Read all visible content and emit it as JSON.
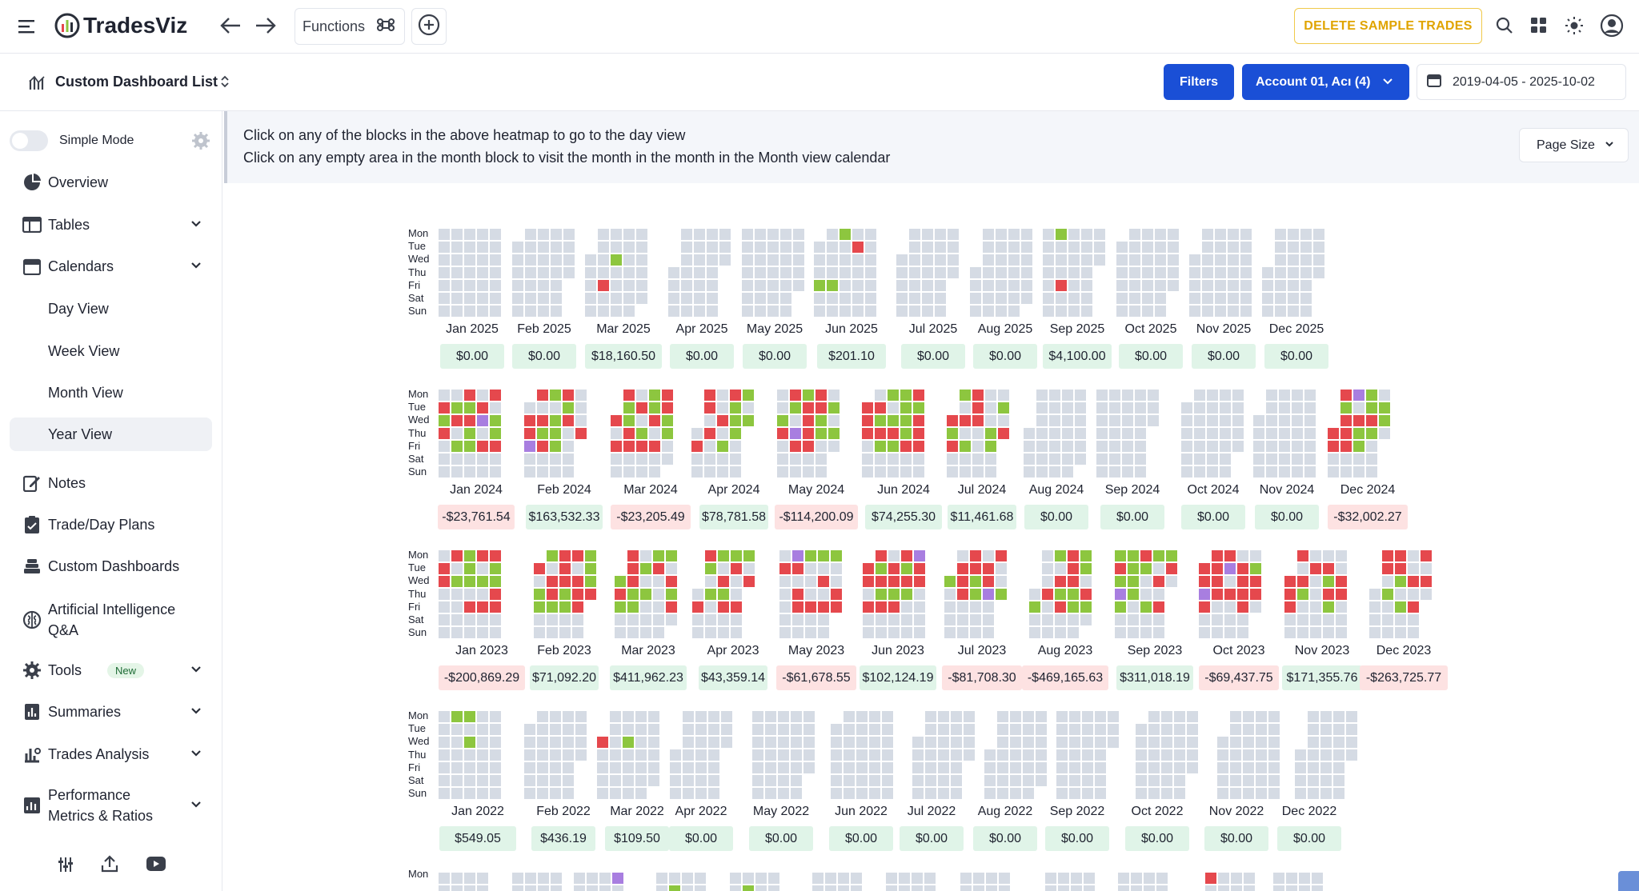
{
  "app": {
    "brand": "TradesViz"
  },
  "topbar": {
    "functions_label": "Functions",
    "delete_button": "DELETE SAMPLE TRADES"
  },
  "subbar": {
    "dashboard_title": "Custom Dashboard List",
    "filters_button": "Filters",
    "account_select": "Account 01, Acı (4)",
    "date_range": "2019-04-05 - 2025-10-02"
  },
  "sidebar": {
    "simple_mode": "Simple Mode",
    "items": [
      {
        "label": "Overview",
        "icon": "pie-chart-icon"
      },
      {
        "label": "Tables",
        "icon": "table-icon"
      },
      {
        "label": "Calendars",
        "icon": "calendar-icon"
      },
      {
        "label": "Notes",
        "icon": "notes-icon"
      },
      {
        "label": "Trade/Day Plans",
        "icon": "clipboard-icon"
      },
      {
        "label": "Custom Dashboards",
        "icon": "stack-icon"
      },
      {
        "label": "Artificial Intelligence Q&A",
        "icon": "brain-icon"
      },
      {
        "label": "Tools",
        "icon": "gear-icon",
        "badge": "New"
      },
      {
        "label": "Summaries",
        "icon": "bar-chart-icon"
      },
      {
        "label": "Trades Analysis",
        "icon": "analysis-icon"
      },
      {
        "label": "Performance Metrics & Ratios",
        "icon": "metrics-icon"
      }
    ],
    "calendar_sub": [
      "Day View",
      "Week View",
      "Month View",
      "Year View"
    ]
  },
  "info": {
    "line1": "Click on any of the blocks in the above heatmap to go to the day view",
    "line2": "Click on any empty area in the month block to visit the month in the month in the Month view calendar",
    "page_size": "Page Size"
  },
  "day_labels": [
    "Mon",
    "Tue",
    "Wed",
    "Thu",
    "Fri",
    "Sat",
    "Sun"
  ],
  "colors": {
    "empty": "#d5dbe4",
    "win": "#8dc63f",
    "loss": "#e5484d",
    "mixed": "#a87ee0",
    "primary": "#1a4fd6",
    "warning": "#f0b429"
  },
  "years": [
    {
      "year": 2025,
      "months": [
        {
          "label": "Jan 2025",
          "pnl": "$0.00"
        },
        {
          "label": "Feb 2025",
          "pnl": "$0.00"
        },
        {
          "label": "Mar 2025",
          "pnl": "$18,160.50"
        },
        {
          "label": "Apr 2025",
          "pnl": "$0.00"
        },
        {
          "label": "May 2025",
          "pnl": "$0.00"
        },
        {
          "label": "Jun 2025",
          "pnl": "$201.10"
        },
        {
          "label": "Jul 2025",
          "pnl": "$0.00"
        },
        {
          "label": "Aug 2025",
          "pnl": "$0.00"
        },
        {
          "label": "Sep 2025",
          "pnl": "$4,100.00"
        },
        {
          "label": "Oct 2025",
          "pnl": "$0.00"
        },
        {
          "label": "Nov 2025",
          "pnl": "$0.00"
        },
        {
          "label": "Dec 2025",
          "pnl": "$0.00"
        }
      ]
    },
    {
      "year": 2024,
      "months": [
        {
          "label": "Jan 2024",
          "pnl": "-$23,761.54"
        },
        {
          "label": "Feb 2024",
          "pnl": "$163,532.33"
        },
        {
          "label": "Mar 2024",
          "pnl": "-$23,205.49"
        },
        {
          "label": "Apr 2024",
          "pnl": "$78,781.58"
        },
        {
          "label": "May 2024",
          "pnl": "-$114,200.09"
        },
        {
          "label": "Jun 2024",
          "pnl": "$74,255.30"
        },
        {
          "label": "Jul 2024",
          "pnl": "$11,461.68"
        },
        {
          "label": "Aug 2024",
          "pnl": "$0.00"
        },
        {
          "label": "Sep 2024",
          "pnl": "$0.00"
        },
        {
          "label": "Oct 2024",
          "pnl": "$0.00"
        },
        {
          "label": "Nov 2024",
          "pnl": "$0.00"
        },
        {
          "label": "Dec 2024",
          "pnl": "-$32,002.27"
        }
      ]
    },
    {
      "year": 2023,
      "months": [
        {
          "label": "Jan 2023",
          "pnl": "-$200,869.29"
        },
        {
          "label": "Feb 2023",
          "pnl": "$71,092.20"
        },
        {
          "label": "Mar 2023",
          "pnl": "$411,962.23"
        },
        {
          "label": "Apr 2023",
          "pnl": "$43,359.14"
        },
        {
          "label": "May 2023",
          "pnl": "-$61,678.55"
        },
        {
          "label": "Jun 2023",
          "pnl": "$102,124.19"
        },
        {
          "label": "Jul 2023",
          "pnl": "-$81,708.30"
        },
        {
          "label": "Aug 2023",
          "pnl": "-$469,165.63"
        },
        {
          "label": "Sep 2023",
          "pnl": "$311,018.19"
        },
        {
          "label": "Oct 2023",
          "pnl": "-$69,437.75"
        },
        {
          "label": "Nov 2023",
          "pnl": "$171,355.76"
        },
        {
          "label": "Dec 2023",
          "pnl": "-$263,725.77"
        }
      ]
    },
    {
      "year": 2022,
      "months": [
        {
          "label": "Jan 2022",
          "pnl": "$549.05"
        },
        {
          "label": "Feb 2022",
          "pnl": "$436.19"
        },
        {
          "label": "Mar 2022",
          "pnl": "$109.50"
        },
        {
          "label": "Apr 2022",
          "pnl": "$0.00"
        },
        {
          "label": "May 2022",
          "pnl": "$0.00"
        },
        {
          "label": "Jun 2022",
          "pnl": "$0.00"
        },
        {
          "label": "Jul 2022",
          "pnl": "$0.00"
        },
        {
          "label": "Aug 2022",
          "pnl": "$0.00"
        },
        {
          "label": "Sep 2022",
          "pnl": "$0.00"
        },
        {
          "label": "Oct 2022",
          "pnl": "$0.00"
        },
        {
          "label": "Nov 2022",
          "pnl": "$0.00"
        },
        {
          "label": "Dec 2022",
          "pnl": "$0.00"
        }
      ]
    }
  ],
  "partial_row_label": "Mon"
}
